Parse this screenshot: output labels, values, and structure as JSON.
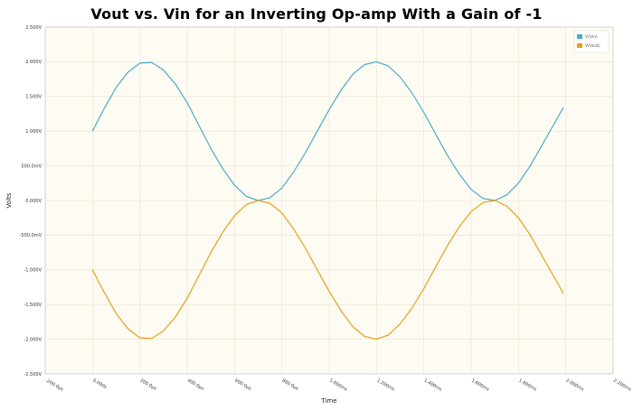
{
  "title": "Vout vs. Vin for an Inverting Op-amp With a Gain of -1",
  "chart_data": {
    "type": "line",
    "title": "Vout vs. Vin for an Inverting Op-amp With a Gain of -1",
    "xlabel": "Time",
    "ylabel": "Volts",
    "xlim": [
      -0.2,
      2.2
    ],
    "ylim": [
      -2.5,
      2.5
    ],
    "grid": true,
    "legend_position": "top-right",
    "x_ticks": [
      "-200.0µs",
      "0.000s",
      "200.0µs",
      "400.0µs",
      "600.0µs",
      "800.0µs",
      "1.000ms",
      "1.200ms",
      "1.400ms",
      "1.600ms",
      "1.800ms",
      "2.000ms",
      "2.200ms"
    ],
    "y_ticks": [
      "2.500V",
      "2.000V",
      "1.500V",
      "1.000V",
      "500.0mV",
      "0.000V",
      "-500.0mV",
      "-1.000V",
      "-1.500V",
      "-2.000V",
      "-2.500V"
    ],
    "series": [
      {
        "name": "V(Vin)",
        "color": "#4bacc6",
        "x": [
          0,
          0.05,
          0.1,
          0.15,
          0.2,
          0.25,
          0.3,
          0.35,
          0.4,
          0.45,
          0.5,
          0.55,
          0.6,
          0.65,
          0.7,
          0.75,
          0.8,
          0.85,
          0.9,
          0.95,
          1.0,
          1.05,
          1.1,
          1.15,
          1.2,
          1.25,
          1.3,
          1.35,
          1.4,
          1.45,
          1.5,
          1.55,
          1.6,
          1.65,
          1.7,
          1.75,
          1.8,
          1.85,
          1.9,
          1.95,
          1.99
        ],
        "values": [
          1.0,
          1.33,
          1.63,
          1.85,
          1.98,
          1.99,
          1.88,
          1.68,
          1.41,
          1.08,
          0.75,
          0.46,
          0.22,
          0.06,
          0.0,
          0.04,
          0.18,
          0.41,
          0.69,
          1.0,
          1.31,
          1.59,
          1.82,
          1.96,
          2.0,
          1.94,
          1.78,
          1.55,
          1.27,
          0.96,
          0.65,
          0.38,
          0.16,
          0.03,
          0.0,
          0.08,
          0.25,
          0.5,
          0.8,
          1.1,
          1.34
        ]
      },
      {
        "name": "V(Vout)",
        "color": "#e6a118",
        "x": [
          0,
          0.05,
          0.1,
          0.15,
          0.2,
          0.25,
          0.3,
          0.35,
          0.4,
          0.45,
          0.5,
          0.55,
          0.6,
          0.65,
          0.7,
          0.75,
          0.8,
          0.85,
          0.9,
          0.95,
          1.0,
          1.05,
          1.1,
          1.15,
          1.2,
          1.25,
          1.3,
          1.35,
          1.4,
          1.45,
          1.5,
          1.55,
          1.6,
          1.65,
          1.7,
          1.75,
          1.8,
          1.85,
          1.9,
          1.95,
          1.99
        ],
        "values": [
          -1.0,
          -1.33,
          -1.63,
          -1.85,
          -1.98,
          -1.99,
          -1.88,
          -1.68,
          -1.41,
          -1.08,
          -0.75,
          -0.46,
          -0.22,
          -0.06,
          0.0,
          -0.04,
          -0.18,
          -0.41,
          -0.69,
          -1.0,
          -1.31,
          -1.59,
          -1.82,
          -1.96,
          -2.0,
          -1.94,
          -1.78,
          -1.55,
          -1.27,
          -0.96,
          -0.65,
          -0.38,
          -0.16,
          -0.03,
          0.0,
          -0.08,
          -0.25,
          -0.5,
          -0.8,
          -1.1,
          -1.34
        ]
      }
    ]
  }
}
